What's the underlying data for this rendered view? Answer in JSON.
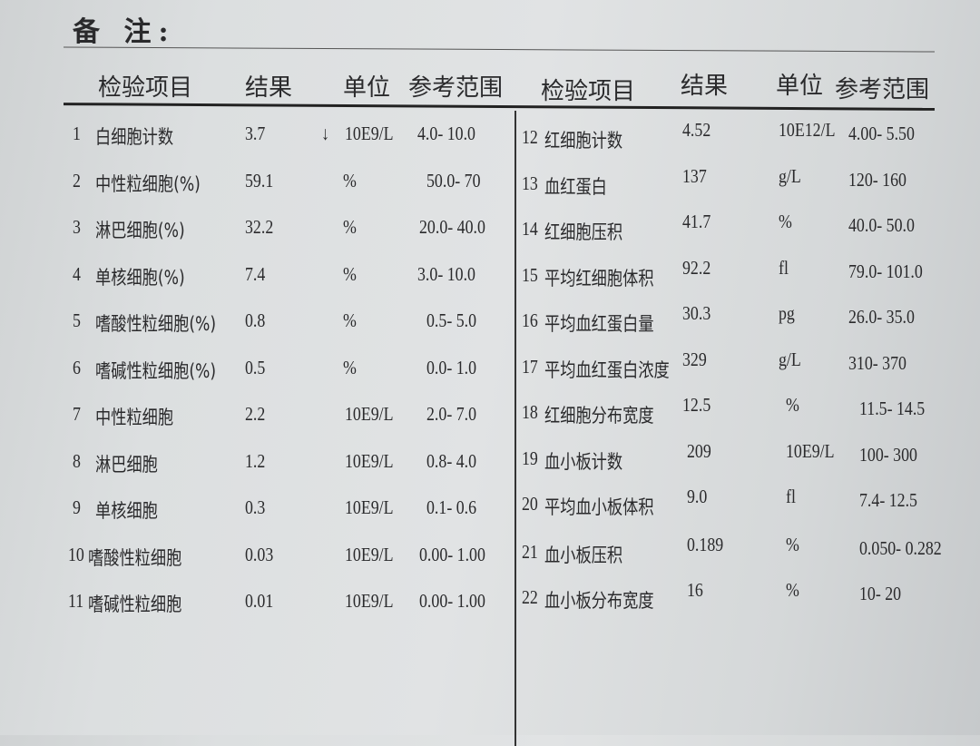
{
  "remark_label": "备 注:",
  "headers": {
    "item": "检验项目",
    "result": "结果",
    "unit": "单位",
    "range": "参考范围"
  },
  "left_rows": [
    {
      "no": "1",
      "name": "白细胞计数",
      "result": "3.7",
      "flag": "↓",
      "unit": "10E9/L",
      "range": "4.0- 10.0"
    },
    {
      "no": "2",
      "name": "中性粒细胞(%)",
      "result": "59.1",
      "flag": "",
      "unit": "%",
      "range": "50.0- 70"
    },
    {
      "no": "3",
      "name": "淋巴细胞(%)",
      "result": "32.2",
      "flag": "",
      "unit": "%",
      "range": "20.0- 40.0"
    },
    {
      "no": "4",
      "name": "单核细胞(%)",
      "result": "7.4",
      "flag": "",
      "unit": "%",
      "range": "3.0- 10.0"
    },
    {
      "no": "5",
      "name": "嗜酸性粒细胞(%)",
      "result": "0.8",
      "flag": "",
      "unit": "%",
      "range": "0.5- 5.0"
    },
    {
      "no": "6",
      "name": "嗜碱性粒细胞(%)",
      "result": "0.5",
      "flag": "",
      "unit": "%",
      "range": "0.0- 1.0"
    },
    {
      "no": "7",
      "name": "中性粒细胞",
      "result": "2.2",
      "flag": "",
      "unit": "10E9/L",
      "range": "2.0- 7.0"
    },
    {
      "no": "8",
      "name": "淋巴细胞",
      "result": "1.2",
      "flag": "",
      "unit": "10E9/L",
      "range": "0.8- 4.0"
    },
    {
      "no": "9",
      "name": "单核细胞",
      "result": "0.3",
      "flag": "",
      "unit": "10E9/L",
      "range": "0.1- 0.6"
    },
    {
      "no": "10",
      "name": "嗜酸性粒细胞",
      "result": "0.03",
      "flag": "",
      "unit": "10E9/L",
      "range": "0.00- 1.00"
    },
    {
      "no": "11",
      "name": "嗜碱性粒细胞",
      "result": "0.01",
      "flag": "",
      "unit": "10E9/L",
      "range": "0.00- 1.00"
    }
  ],
  "right_rows": [
    {
      "no": "12",
      "name": "红细胞计数",
      "result": "4.52",
      "unit": "10E12/L",
      "range": "4.00- 5.50"
    },
    {
      "no": "13",
      "name": "血红蛋白",
      "result": "137",
      "unit": "g/L",
      "range": "120- 160"
    },
    {
      "no": "14",
      "name": "红细胞压积",
      "result": "41.7",
      "unit": "%",
      "range": "40.0- 50.0"
    },
    {
      "no": "15",
      "name": "平均红细胞体积",
      "result": "92.2",
      "unit": "fl",
      "range": "79.0- 101.0"
    },
    {
      "no": "16",
      "name": "平均血红蛋白量",
      "result": "30.3",
      "unit": "pg",
      "range": "26.0- 35.0"
    },
    {
      "no": "17",
      "name": "平均血红蛋白浓度",
      "result": "329",
      "unit": "g/L",
      "range": "310- 370"
    },
    {
      "no": "18",
      "name": "红细胞分布宽度",
      "result": "12.5",
      "unit": "%",
      "range": "11.5- 14.5"
    },
    {
      "no": "19",
      "name": "血小板计数",
      "result": "209",
      "unit": "10E9/L",
      "range": "100- 300"
    },
    {
      "no": "20",
      "name": "平均血小板体积",
      "result": "9.0",
      "unit": "fl",
      "range": "7.4- 12.5"
    },
    {
      "no": "21",
      "name": "血小板压积",
      "result": "0.189",
      "unit": "%",
      "range": "0.050- 0.282"
    },
    {
      "no": "22",
      "name": "血小板分布宽度",
      "result": "16",
      "unit": "%",
      "range": "10- 20"
    }
  ]
}
